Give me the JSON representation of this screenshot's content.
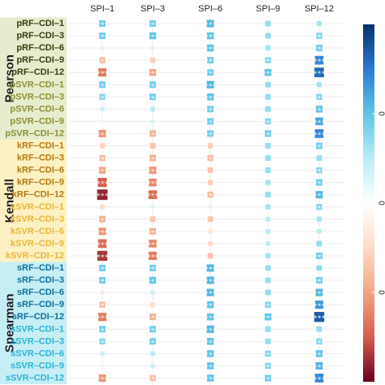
{
  "chart_data": {
    "type": "heatmap",
    "title": "",
    "columns": [
      "SPI–1",
      "SPI–3",
      "SPI–6",
      "SPI–9",
      "SPI–12"
    ],
    "rows": [
      "pRF–CDI–1",
      "pRF–CDI–3",
      "pRF–CDI–6",
      "pRF–CDI–9",
      "pRF–CDI–12",
      "pSVR–CDI–1",
      "pSVR–CDI–3",
      "pSVR–CDI–6",
      "pSVR–CDI–9",
      "pSVR–CDI–12",
      "kRF–CDI–1",
      "kRF–CDI–3",
      "kRF–CDI–6",
      "kRF–CDI–9",
      "kRF–CDI–12",
      "kSVR–CDI–1",
      "kSVR–CDI–3",
      "kSVR–CDI–6",
      "kSVR–CDI–9",
      "kSVR–CDI–12",
      "sRF–CDI–1",
      "sRF–CDI–3",
      "sRF–CDI–6",
      "sRF–CDI–9",
      "sRF–CDI–12",
      "sSVR–CDI–1",
      "sSVR–CDI–3",
      "sSVR–CDI–6",
      "sSVR–CDI–9",
      "sSVR–CDI–12"
    ],
    "groups": [
      {
        "name": "Pearson",
        "rows": [
          0,
          9
        ],
        "band_color": "#e6edcf",
        "text_color": "#5a5a1f"
      },
      {
        "name": "Kendall",
        "rows": [
          10,
          19
        ],
        "band_color": "#fdf1c4",
        "text_color": "#c8960c"
      },
      {
        "name": "Spearman",
        "rows": [
          20,
          29
        ],
        "band_color": "#c6eef5",
        "text_color": "#1e8fb0"
      }
    ],
    "row_label_colors": {
      "pRF": "#3a3a10",
      "pSVR": "#8d8f34",
      "kRF": "#b5780d",
      "kSVR": "#e8b43a",
      "sRF": "#0d6f99",
      "sSVR": "#2fb2d6"
    },
    "values": [
      [
        0.45,
        0.45,
        0.55,
        0.35,
        0.3
      ],
      [
        0.45,
        0.5,
        0.5,
        0.35,
        0.4
      ],
      [
        -0.15,
        0.15,
        0.5,
        0.3,
        0.45
      ],
      [
        -0.4,
        -0.3,
        0.45,
        0.4,
        0.7
      ],
      [
        -0.65,
        -0.5,
        0.45,
        0.5,
        0.8
      ],
      [
        0.45,
        0.45,
        0.55,
        0.35,
        0.3
      ],
      [
        0.4,
        0.45,
        0.5,
        0.35,
        0.4
      ],
      [
        0.2,
        0.25,
        0.45,
        0.35,
        0.5
      ],
      [
        -0.1,
        0.15,
        0.45,
        0.4,
        0.6
      ],
      [
        -0.55,
        -0.45,
        0.45,
        0.45,
        0.7
      ],
      [
        -0.3,
        -0.35,
        -0.3,
        0.35,
        0.45
      ],
      [
        -0.4,
        -0.45,
        -0.4,
        0.35,
        0.35
      ],
      [
        -0.5,
        -0.55,
        -0.35,
        0.35,
        0.4
      ],
      [
        -0.75,
        -0.6,
        -0.3,
        0.3,
        0.45
      ],
      [
        -0.9,
        -0.7,
        -0.4,
        0.35,
        0.55
      ],
      [
        -0.25,
        0.15,
        -0.15,
        0.3,
        0.4
      ],
      [
        -0.45,
        -0.35,
        -0.35,
        0.25,
        0.3
      ],
      [
        -0.55,
        -0.45,
        -0.2,
        0.25,
        0.25
      ],
      [
        -0.7,
        -0.6,
        -0.25,
        0.25,
        0.35
      ],
      [
        -0.85,
        -0.65,
        -0.35,
        0.3,
        0.45
      ],
      [
        0.45,
        0.45,
        0.55,
        0.35,
        0.35
      ],
      [
        0.45,
        0.5,
        0.55,
        0.35,
        0.45
      ],
      [
        -0.15,
        0.2,
        0.55,
        0.35,
        0.55
      ],
      [
        -0.4,
        -0.25,
        0.5,
        0.4,
        0.65
      ],
      [
        -0.65,
        -0.45,
        0.5,
        0.5,
        0.85
      ],
      [
        0.45,
        0.45,
        0.55,
        0.35,
        0.35
      ],
      [
        0.4,
        0.45,
        0.5,
        0.35,
        0.4
      ],
      [
        0.2,
        0.25,
        0.5,
        0.4,
        0.5
      ],
      [
        -0.1,
        0.2,
        0.5,
        0.4,
        0.55
      ],
      [
        -0.55,
        -0.4,
        0.5,
        0.45,
        0.7
      ]
    ],
    "colorbar": {
      "min": -1,
      "max": 1,
      "ticks": [
        -0.5,
        0,
        0.5
      ],
      "tick_labels": [
        "0",
        "0",
        "0"
      ],
      "colors": [
        "#67001f",
        "#d6604d",
        "#f4a582",
        "#fddbc7",
        "#ffffff",
        "#b8ecf4",
        "#5fc6e8",
        "#2a79d2",
        "#08306b"
      ]
    },
    "significance_marker": "∗∗∗",
    "grid": true
  }
}
